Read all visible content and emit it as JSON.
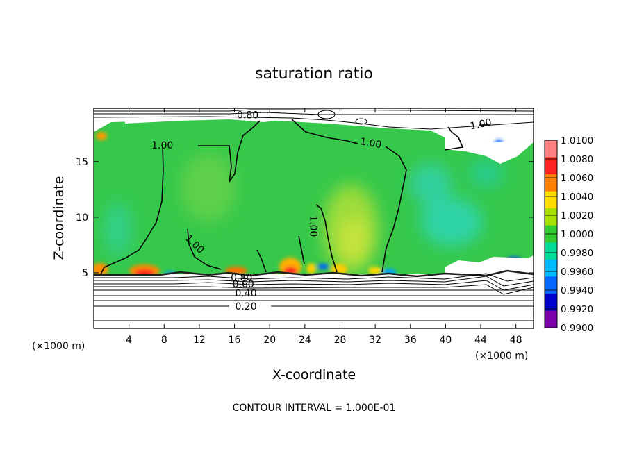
{
  "chart_data": {
    "type": "heatmap",
    "title": "saturation ratio",
    "xlabel": "X-coordinate",
    "ylabel": "Z-coordinate",
    "x_unit_left": "(×1000 m)",
    "x_unit_right": "(×1000 m)",
    "xlim": [
      0,
      50
    ],
    "ylim": [
      0,
      19.8
    ],
    "x_ticks": [
      4,
      8,
      12,
      16,
      20,
      24,
      28,
      32,
      36,
      40,
      44,
      48
    ],
    "y_ticks": [
      5,
      10,
      15
    ],
    "footer": "CONTOUR INTERVAL = 1.000E-01",
    "contour_interval": 0.1,
    "contour_labels": [
      {
        "text": "0.80",
        "x": 17.5,
        "y": 19.2
      },
      {
        "text": "1.00",
        "x": 7.8,
        "y": 16.5,
        "rot": 0
      },
      {
        "text": "1.00",
        "x": 31.5,
        "y": 16.7,
        "rot": 10
      },
      {
        "text": "1.00",
        "x": 44.0,
        "y": 18.4,
        "rot": -12
      },
      {
        "text": "1.00",
        "x": 11.5,
        "y": 7.6,
        "rot": 45
      },
      {
        "text": "1.00",
        "x": 25.0,
        "y": 9.2,
        "rot": 90
      },
      {
        "text": "0.80",
        "x": 16.8,
        "y": 4.6
      },
      {
        "text": "0.60",
        "x": 17.0,
        "y": 4.0
      },
      {
        "text": "0.40",
        "x": 17.3,
        "y": 3.2
      },
      {
        "text": "0.20",
        "x": 17.3,
        "y": 2.0
      }
    ],
    "colorbar": {
      "labels": [
        "1.0100",
        "1.0080",
        "1.0060",
        "1.0040",
        "1.0020",
        "1.0000",
        "0.9980",
        "0.9960",
        "0.9940",
        "0.9920",
        "0.9900"
      ],
      "colors": [
        "#ff8080",
        "#ff2020",
        "#ff8000",
        "#ffdc00",
        "#a8e000",
        "#33cc33",
        "#00dd99",
        "#00bbff",
        "#0066ff",
        "#0000cc",
        "#7a00aa"
      ]
    }
  }
}
